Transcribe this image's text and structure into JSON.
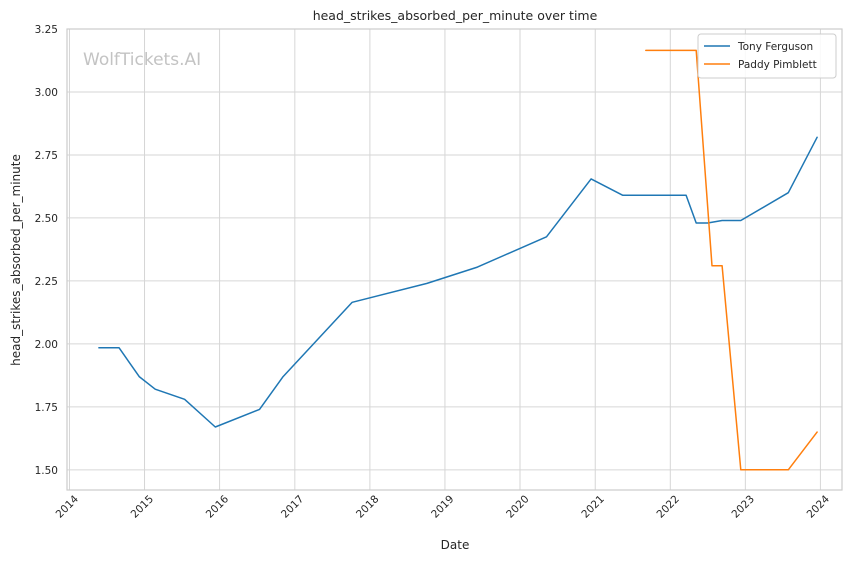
{
  "chart_data": {
    "type": "line",
    "title": "head_strikes_absorbed_per_minute over time",
    "xlabel": "Date",
    "ylabel": "head_strikes_absorbed_per_minute",
    "watermark": "WolfTickets.AI",
    "xlim": [
      "2013-12-20",
      "2024-04-15"
    ],
    "ylim": [
      1.42,
      3.25
    ],
    "x_ticks": [
      "2014",
      "2015",
      "2016",
      "2017",
      "2018",
      "2019",
      "2020",
      "2021",
      "2022",
      "2023",
      "2024"
    ],
    "y_ticks": [
      1.5,
      1.75,
      2.0,
      2.25,
      2.5,
      2.75,
      3.0,
      3.25
    ],
    "y_tick_labels": [
      "1.50",
      "1.75",
      "2.00",
      "2.25",
      "2.50",
      "2.75",
      "3.00",
      "3.25"
    ],
    "grid": true,
    "legend_position": "top-right",
    "series": [
      {
        "name": "Tony Ferguson",
        "color": "#1f77b4",
        "points": [
          [
            "2014-05-24",
            1.985
          ],
          [
            "2014-08-30",
            1.985
          ],
          [
            "2014-12-06",
            1.87
          ],
          [
            "2015-02-22",
            1.82
          ],
          [
            "2015-07-15",
            1.78
          ],
          [
            "2015-12-11",
            1.67
          ],
          [
            "2016-07-13",
            1.74
          ],
          [
            "2016-11-05",
            1.87
          ],
          [
            "2017-10-07",
            2.165
          ],
          [
            "2018-10-06",
            2.24
          ],
          [
            "2019-06-08",
            2.305
          ],
          [
            "2020-05-09",
            2.425
          ],
          [
            "2020-12-12",
            2.655
          ],
          [
            "2021-05-15",
            2.59
          ],
          [
            "2022-03-19",
            2.59
          ],
          [
            "2022-05-07",
            2.48
          ],
          [
            "2022-07-02",
            2.48
          ],
          [
            "2022-09-10",
            2.49
          ],
          [
            "2022-12-10",
            2.49
          ],
          [
            "2023-07-29",
            2.6
          ],
          [
            "2023-12-16",
            2.82
          ]
        ]
      },
      {
        "name": "Paddy Pimblett",
        "color": "#ff7f0e",
        "points": [
          [
            "2021-09-04",
            3.165
          ],
          [
            "2022-03-19",
            3.165
          ],
          [
            "2022-05-07",
            3.165
          ],
          [
            "2022-07-23",
            2.31
          ],
          [
            "2022-09-10",
            2.31
          ],
          [
            "2022-12-10",
            1.5
          ],
          [
            "2023-07-29",
            1.5
          ],
          [
            "2023-12-16",
            1.65
          ]
        ]
      }
    ]
  }
}
